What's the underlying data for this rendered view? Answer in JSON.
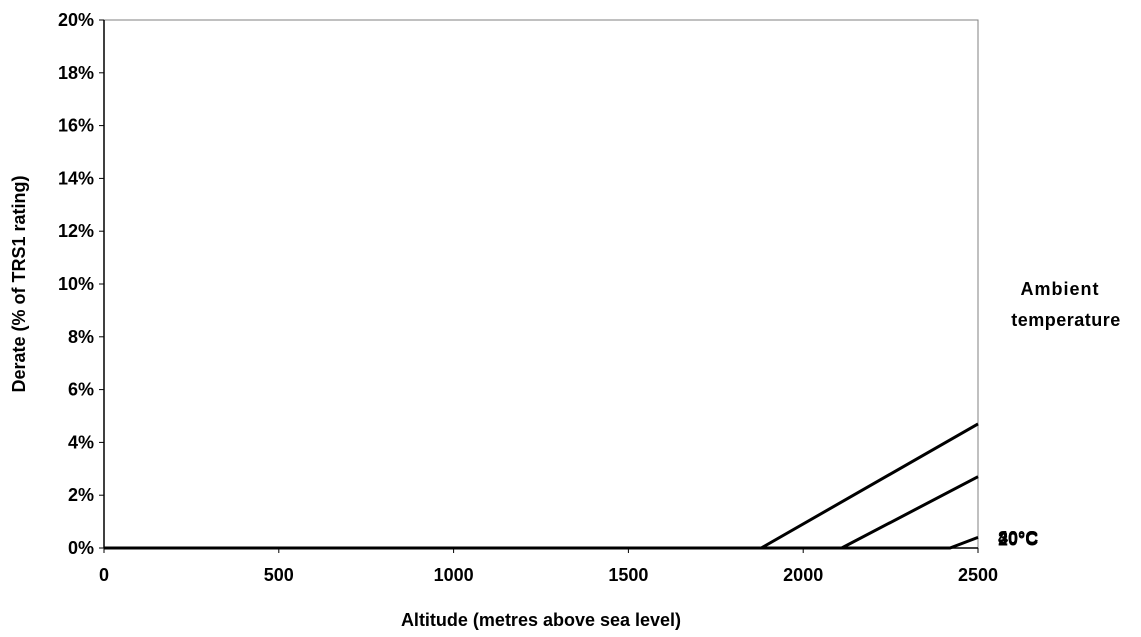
{
  "chart_data": {
    "type": "line",
    "title": "",
    "xlabel": "Altitude (metres above sea level)",
    "ylabel": "Derate (% of TRS1 rating)",
    "xlim": [
      0,
      2500
    ],
    "ylim": [
      0,
      20
    ],
    "x_ticks": [
      "0",
      "500",
      "1000",
      "1500",
      "2000",
      "2500"
    ],
    "y_ticks": [
      "0%",
      "2%",
      "4%",
      "6%",
      "8%",
      "10%",
      "12%",
      "14%",
      "16%",
      "18%",
      "20%"
    ],
    "grid": false,
    "legend_title": [
      "Ambient",
      "temperature"
    ],
    "legend_placement": "right",
    "series": [
      {
        "name": "40°C",
        "x": [
          1880,
          2500
        ],
        "y": [
          0,
          4.7
        ]
      },
      {
        "name": "30°C",
        "x": [
          2110,
          2500
        ],
        "y": [
          0,
          2.7
        ]
      },
      {
        "name": "20°C",
        "x": [
          2420,
          2500
        ],
        "y": [
          0,
          0.4
        ]
      }
    ]
  }
}
